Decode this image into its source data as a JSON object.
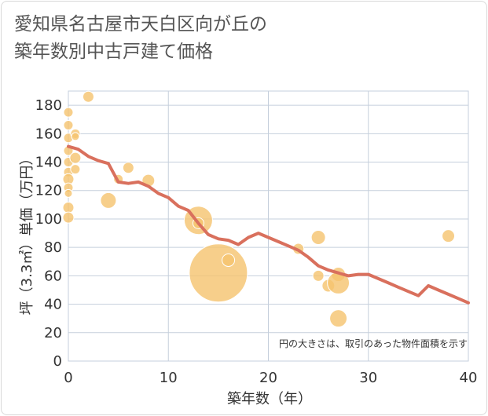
{
  "chart_data": {
    "type": "scatter",
    "title_line1": "愛知県名古屋市天白区向が丘の",
    "title_line2": "築年数別中古戸建て価格",
    "xlabel": "築年数（年）",
    "ylabel": "坪（3.3㎡）単価（万円）",
    "xlim": [
      0,
      40
    ],
    "ylim": [
      0,
      190
    ],
    "xticks": [
      0,
      10,
      20,
      30,
      40
    ],
    "yticks": [
      0,
      20,
      40,
      60,
      80,
      100,
      120,
      140,
      160,
      180
    ],
    "note": "円の大きさは、取引のあった物件面積を示す",
    "colors": {
      "bubble": "#f5c36e",
      "trend": "#d9705d",
      "grid": "#c5cfdc"
    },
    "points": [
      {
        "x": 0,
        "y": 175,
        "r": 6
      },
      {
        "x": 0,
        "y": 166,
        "r": 6
      },
      {
        "x": 0,
        "y": 157,
        "r": 6
      },
      {
        "x": 0,
        "y": 148,
        "r": 6
      },
      {
        "x": 0,
        "y": 140,
        "r": 6
      },
      {
        "x": 0,
        "y": 133,
        "r": 6
      },
      {
        "x": 0,
        "y": 128,
        "r": 7
      },
      {
        "x": 0,
        "y": 122,
        "r": 6
      },
      {
        "x": 0,
        "y": 118,
        "r": 5
      },
      {
        "x": 0,
        "y": 108,
        "r": 7
      },
      {
        "x": 0,
        "y": 101,
        "r": 7
      },
      {
        "x": 0.7,
        "y": 160,
        "r": 6
      },
      {
        "x": 0.7,
        "y": 158,
        "r": 5
      },
      {
        "x": 0.7,
        "y": 143,
        "r": 7
      },
      {
        "x": 0.7,
        "y": 135,
        "r": 6
      },
      {
        "x": 2,
        "y": 186,
        "r": 7
      },
      {
        "x": 4,
        "y": 113,
        "r": 10
      },
      {
        "x": 5,
        "y": 128,
        "r": 6
      },
      {
        "x": 6,
        "y": 136,
        "r": 7
      },
      {
        "x": 8,
        "y": 127,
        "r": 8
      },
      {
        "x": 13,
        "y": 99,
        "r": 18
      },
      {
        "x": 13,
        "y": 97,
        "r": 7
      },
      {
        "x": 15,
        "y": 62,
        "r": 37
      },
      {
        "x": 16,
        "y": 71,
        "r": 8
      },
      {
        "x": 23,
        "y": 79,
        "r": 7
      },
      {
        "x": 25,
        "y": 87,
        "r": 9
      },
      {
        "x": 25,
        "y": 60,
        "r": 7
      },
      {
        "x": 26,
        "y": 53,
        "r": 8
      },
      {
        "x": 27,
        "y": 61,
        "r": 9
      },
      {
        "x": 27,
        "y": 55,
        "r": 14
      },
      {
        "x": 27,
        "y": 30,
        "r": 11
      },
      {
        "x": 38,
        "y": 88,
        "r": 8
      }
    ],
    "trend": [
      [
        0,
        151
      ],
      [
        1,
        149
      ],
      [
        2,
        144
      ],
      [
        3,
        141
      ],
      [
        4,
        139
      ],
      [
        5,
        126
      ],
      [
        6,
        125
      ],
      [
        7,
        126
      ],
      [
        8,
        123
      ],
      [
        9,
        118
      ],
      [
        10,
        115
      ],
      [
        11,
        109
      ],
      [
        12,
        106
      ],
      [
        13,
        97
      ],
      [
        14,
        89
      ],
      [
        15,
        86
      ],
      [
        16,
        85
      ],
      [
        17,
        82
      ],
      [
        18,
        87
      ],
      [
        19,
        90
      ],
      [
        20,
        87
      ],
      [
        21,
        84
      ],
      [
        22,
        81
      ],
      [
        23,
        78
      ],
      [
        24,
        73
      ],
      [
        25,
        67
      ],
      [
        26,
        64
      ],
      [
        27,
        62
      ],
      [
        28,
        60
      ],
      [
        29,
        61
      ],
      [
        30,
        61
      ],
      [
        31,
        58
      ],
      [
        32,
        55
      ],
      [
        33,
        52
      ],
      [
        34,
        49
      ],
      [
        35,
        46
      ],
      [
        36,
        53
      ],
      [
        37,
        50
      ],
      [
        38,
        47
      ],
      [
        39,
        44
      ],
      [
        40,
        41
      ]
    ]
  }
}
